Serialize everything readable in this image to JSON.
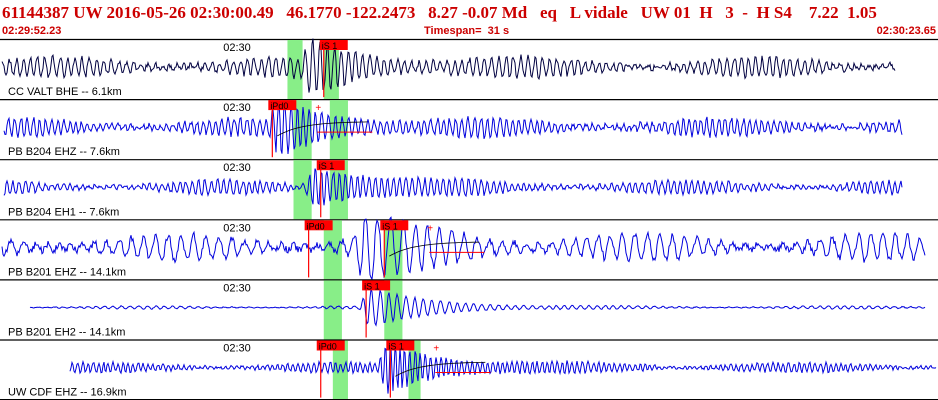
{
  "header": {
    "title": "61144387 UW 2016-05-26 02:30:00.49   46.1770 -122.2473   8.27 -0.07 Md   eq   L vidale   UW 01  H   3  -  H S4    7.22  1.05",
    "start_time": "02:29:52.23",
    "timespan_label": "Timespan=  31 s",
    "end_time": "02:30:23.65"
  },
  "colors": {
    "trace_first": "#000040",
    "trace": "#0000dd",
    "pick": "#ff0000",
    "pick_label_bg": "#ff0000",
    "window_band": "#88ee88",
    "divider": "#000000",
    "header_text": "#cc0000"
  },
  "chart_data": {
    "type": "line",
    "x_axis": {
      "start": "02:29:52.23",
      "end": "02:30:23.65",
      "span_s": 31
    },
    "channels": [
      {
        "label": "CC VALT BHE -- 6.1km",
        "time_tick": "02:30",
        "picks": [
          {
            "label": "iS 1",
            "t": 10.7
          }
        ],
        "coda": false,
        "windows": [
          [
            9.5,
            10.0
          ],
          [
            10.7,
            11.2
          ]
        ]
      },
      {
        "label": "PB B204 EHZ -- 7.6km",
        "time_tick": "02:30",
        "picks": [
          {
            "label": "iPd0",
            "t": 9.0
          }
        ],
        "coda": true,
        "windows": [
          [
            9.7,
            10.3
          ],
          [
            10.9,
            11.5
          ]
        ]
      },
      {
        "label": "PB B204 EH1 -- 7.6km",
        "time_tick": "02:30",
        "picks": [
          {
            "label": "iS 1",
            "t": 10.6
          }
        ],
        "coda": false,
        "windows": [
          [
            9.7,
            10.3
          ],
          [
            10.9,
            11.5
          ]
        ]
      },
      {
        "label": "PB B201 EHZ -- 14.1km",
        "time_tick": "02:30",
        "picks": [
          {
            "label": "iPd0",
            "t": 10.2
          },
          {
            "label": "iS 1",
            "t": 12.7
          }
        ],
        "coda": true,
        "windows": [
          [
            10.7,
            11.3
          ],
          [
            12.7,
            13.3
          ]
        ]
      },
      {
        "label": "PB B201 EH2 -- 14.1km",
        "time_tick": "02:30",
        "picks": [
          {
            "label": "iS 1",
            "t": 12.1
          }
        ],
        "coda": false,
        "windows": [
          [
            10.7,
            11.3
          ],
          [
            12.7,
            13.3
          ]
        ]
      },
      {
        "label": "UW CDF EHZ -- 16.9km",
        "time_tick": "02:30",
        "picks": [
          {
            "label": "iPd0",
            "t": 10.6
          },
          {
            "label": "iS 1",
            "t": 12.9
          }
        ],
        "coda": true,
        "windows": [
          [
            11.0,
            11.5
          ],
          [
            13.5,
            13.9
          ]
        ]
      }
    ]
  }
}
